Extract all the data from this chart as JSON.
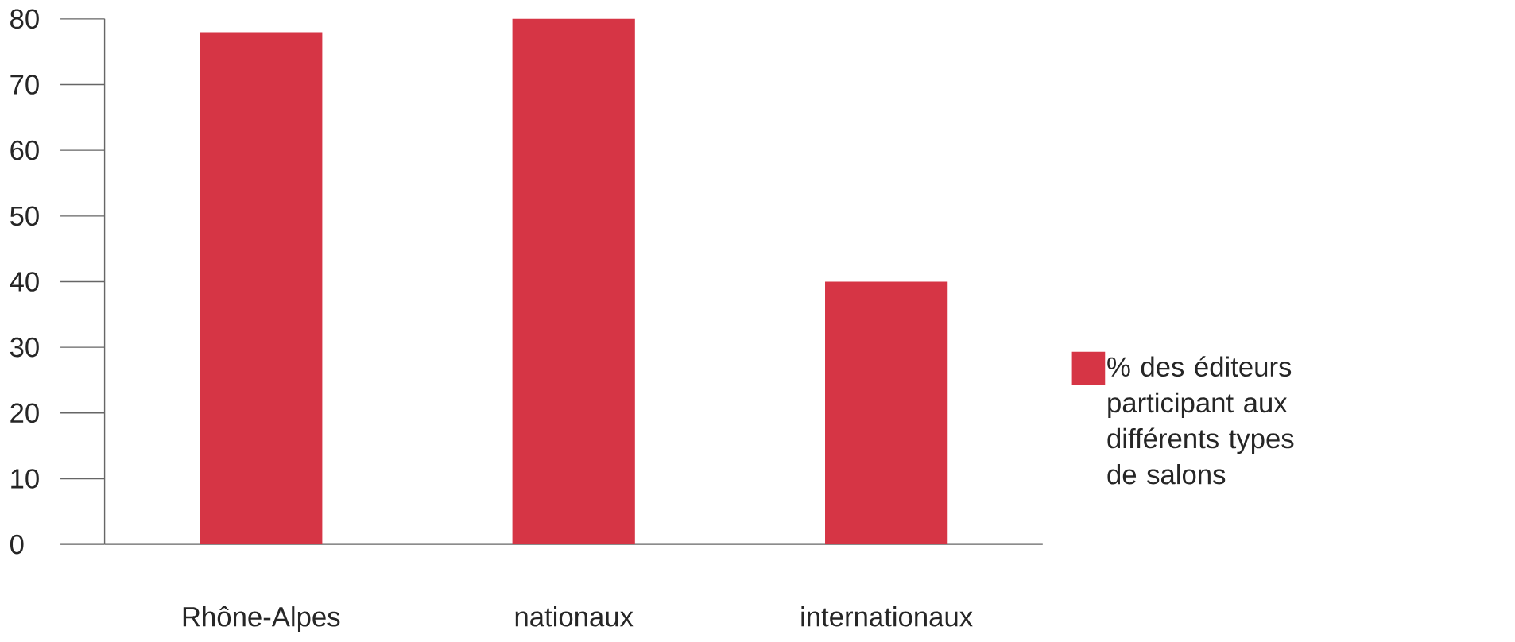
{
  "chart_data": {
    "type": "bar",
    "categories": [
      "Rhône-Alpes",
      "nationaux",
      "internationaux"
    ],
    "series": [
      {
        "name": "% des éditeurs participant aux différents types de salons",
        "color": "#d63545",
        "values": [
          78,
          80,
          40
        ]
      }
    ],
    "ylim": [
      0,
      80
    ],
    "yticks": [
      0,
      10,
      20,
      30,
      40,
      50,
      60,
      70,
      80
    ],
    "grid": false,
    "legend": "right"
  }
}
